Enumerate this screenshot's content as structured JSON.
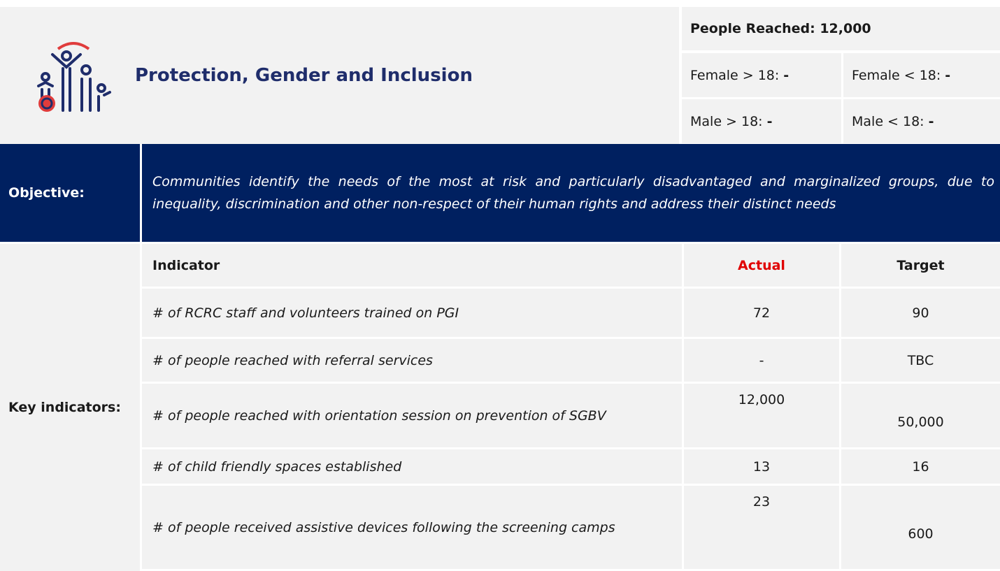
{
  "header": {
    "title": "Protection, Gender and Inclusion",
    "people_reached": {
      "label": "People Reached:",
      "value": "12,000"
    },
    "breakdown": [
      {
        "label": "Female > 18:",
        "value": "-"
      },
      {
        "label": "Female < 18:",
        "value": "-"
      },
      {
        "label": "Male > 18:",
        "value": "-"
      },
      {
        "label": "Male < 18:",
        "value": "-"
      }
    ]
  },
  "objective": {
    "label": "Objective:",
    "text": "Communities identify the needs of the most at risk and particularly disadvantaged and marginalized groups, due to inequality, discrimination and other non-respect of their human rights and address their distinct needs"
  },
  "indicators": {
    "label": "Key indicators:",
    "columns": [
      "Indicator",
      "Actual",
      "Target"
    ],
    "rows": [
      [
        "# of RCRC staff and volunteers trained on PGI",
        "72",
        "90"
      ],
      [
        "# of people reached with referral services",
        "-",
        "TBC"
      ],
      [
        "# of people reached with orientation session on prevention of SGBV",
        "12,000",
        "50,000"
      ],
      [
        "# of child friendly spaces established",
        "13",
        "16"
      ],
      [
        "# of people received assistive devices following the screening camps",
        "23",
        "600"
      ]
    ]
  }
}
